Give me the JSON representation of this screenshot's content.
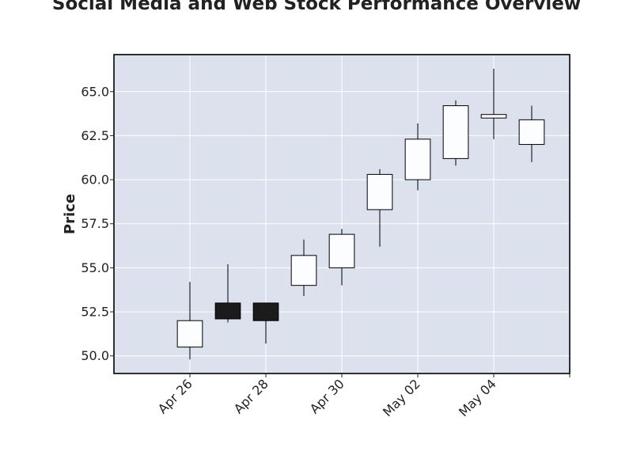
{
  "chart_data": {
    "type": "candlestick",
    "title": "Social Media and Web Stock Performance Overview",
    "xlabel": "",
    "ylabel": "Price",
    "ylim": [
      49.0,
      67.1
    ],
    "xlim": [
      "2024-04-24",
      "2024-05-06"
    ],
    "grid": true,
    "x_tick_dates": [
      "2024-04-26",
      "2024-04-28",
      "2024-04-30",
      "2024-05-02",
      "2024-05-04",
      "2024-05-06"
    ],
    "x_tick_labels": [
      "Apr 26",
      "Apr 28",
      "Apr 30",
      "May 02",
      "May 04",
      ""
    ],
    "y_ticks": [
      50.0,
      52.5,
      55.0,
      57.5,
      60.0,
      62.5,
      65.0
    ],
    "y_tick_labels": [
      "50.0",
      "52.5",
      "55.0",
      "57.5",
      "60.0",
      "62.5",
      "65.0"
    ],
    "candles": [
      {
        "date": "2024-04-26",
        "open": 50.5,
        "high": 54.2,
        "low": 49.8,
        "close": 52.0
      },
      {
        "date": "2024-04-27",
        "open": 53.0,
        "high": 55.2,
        "low": 51.9,
        "close": 52.1
      },
      {
        "date": "2024-04-28",
        "open": 53.0,
        "high": 53.0,
        "low": 50.7,
        "close": 52.0
      },
      {
        "date": "2024-04-29",
        "open": 54.0,
        "high": 56.6,
        "low": 53.4,
        "close": 55.7
      },
      {
        "date": "2024-04-30",
        "open": 55.0,
        "high": 57.2,
        "low": 54.0,
        "close": 56.9
      },
      {
        "date": "2024-05-01",
        "open": 58.3,
        "high": 60.6,
        "low": 56.2,
        "close": 60.3
      },
      {
        "date": "2024-05-02",
        "open": 60.0,
        "high": 63.2,
        "low": 59.4,
        "close": 62.3
      },
      {
        "date": "2024-05-03",
        "open": 61.2,
        "high": 64.5,
        "low": 60.8,
        "close": 64.2
      },
      {
        "date": "2024-05-04",
        "open": 63.5,
        "high": 66.3,
        "low": 62.3,
        "close": 63.7
      },
      {
        "date": "2024-05-05",
        "open": 62.0,
        "high": 64.2,
        "low": 61.0,
        "close": 63.4
      }
    ],
    "colors": {
      "up_fill": "#fcfdfe",
      "down_fill": "#1b1b1b",
      "edge": "#000000",
      "plot_bg": "#dce1ee",
      "grid": "#ffffff",
      "frame": "#000000"
    }
  }
}
